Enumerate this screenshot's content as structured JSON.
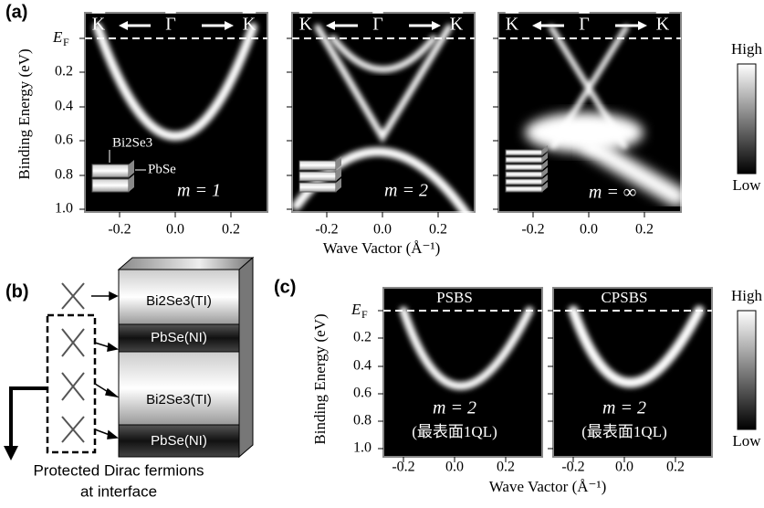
{
  "panel_a": {
    "label": "(a)",
    "y_label": "Binding Energy (eV)",
    "x_label": "Wave Vactor (Å⁻¹)",
    "ef": "E",
    "ef_sub": "F",
    "y_ticks": [
      "0.2",
      "0.4",
      "0.6",
      "0.8",
      "1.0"
    ],
    "x_ticks": [
      "-0.2",
      "0.0",
      "0.2"
    ],
    "k_labels": [
      "K",
      "Γ",
      "K"
    ],
    "inset_top": "Bi2Se3",
    "inset_side": "PbSe",
    "plots": [
      {
        "m_label": "m = 1"
      },
      {
        "m_label": "m = 2"
      },
      {
        "m_label": "m = ∞"
      }
    ],
    "colorbar": {
      "high": "High",
      "low": "Low"
    }
  },
  "panel_b": {
    "label": "(b)",
    "layers": [
      "Bi2Se3(TI)",
      "PbSe(NI)",
      "Bi2Se3(TI)",
      "PbSe(NI)"
    ],
    "caption": [
      "Protected Dirac fermions",
      "at interface"
    ]
  },
  "panel_c": {
    "label": "(c)",
    "y_label": "Binding Energy (eV)",
    "x_label": "Wave Vactor (Å⁻¹)",
    "ef": "E",
    "ef_sub": "F",
    "y_ticks": [
      "0.2",
      "0.4",
      "0.6",
      "0.8",
      "1.0"
    ],
    "x_ticks": [
      "-0.2",
      "0.0",
      "0.2"
    ],
    "plots": [
      {
        "title": "PSBS",
        "m_label": "m = 2",
        "note": "(最表面1QL)"
      },
      {
        "title": "CPSBS",
        "m_label": "m = 2",
        "note": "(最表面1QL)"
      }
    ],
    "colorbar": {
      "high": "High",
      "low": "Low"
    }
  }
}
